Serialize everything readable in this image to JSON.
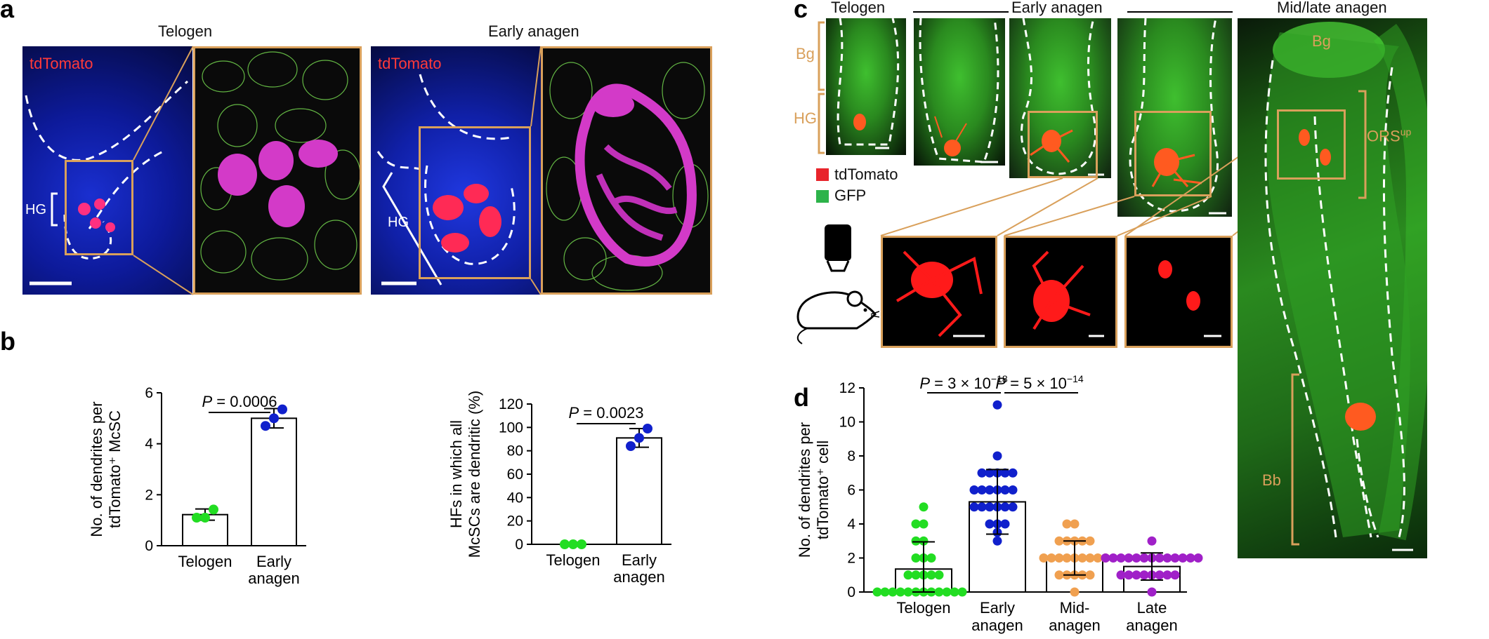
{
  "panel_labels": {
    "a": "a",
    "b": "b",
    "c": "c",
    "d": "d"
  },
  "colors": {
    "orange": "#d9a05b",
    "tdtomato": "#e8242b",
    "gfp": "#2db34a",
    "dapi": "#1830d8",
    "telogen_points": "#22dd22",
    "early_points": "#1020cc",
    "mid_points": "#f0a050",
    "late_points": "#a020c8"
  },
  "panel_a": {
    "telogen_title": "Telogen",
    "early_title": "Early anagen",
    "tdtomato_label": "tdTomato",
    "hg_label": "HG"
  },
  "panel_c": {
    "telogen_title": "Telogen",
    "early_title": "Early anagen",
    "mid_late_title": "Mid/late anagen",
    "bg_label": "Bg",
    "hg_label": "HG",
    "legend_tdtomato": "tdTomato",
    "legend_gfp": "GFP",
    "ors_label": "ORS",
    "ors_sup": "up",
    "bg_label_right": "Bg",
    "bb_label": "Bb"
  },
  "chart_data": [
    {
      "type": "bar",
      "categories": [
        "Telogen",
        "Early\nanagen"
      ],
      "values": [
        1.22,
        5.0
      ],
      "errors": [
        0.22,
        0.38
      ],
      "points": [
        [
          1.1,
          1.1,
          1.42
        ],
        [
          4.7,
          5.0,
          5.35
        ]
      ],
      "point_colors": [
        "#22dd22",
        "#1020cc"
      ],
      "ylabel": "No. of dendrites per\ntdTomato⁺ McSC",
      "ylim": [
        0,
        6
      ],
      "yticks": [
        0,
        2,
        4,
        6
      ],
      "pvalue_label": "P = 0.0006"
    },
    {
      "type": "bar",
      "categories": [
        "Telogen",
        "Early\nanagen"
      ],
      "values": [
        0,
        91
      ],
      "errors": [
        0,
        8
      ],
      "points": [
        [
          0,
          0,
          0
        ],
        [
          84,
          91,
          99
        ]
      ],
      "point_colors": [
        "#22dd22",
        "#1020cc"
      ],
      "ylabel": "HFs in which all\nMcSCs are dendritic (%)",
      "ylim": [
        0,
        120
      ],
      "yticks": [
        0,
        20,
        40,
        60,
        80,
        100,
        120
      ],
      "pvalue_label": "P = 0.0023"
    },
    {
      "type": "bar",
      "categories": [
        "Telogen",
        "Early\nanagen",
        "Mid-\nanagen",
        "Late\nanagen"
      ],
      "values": [
        1.35,
        5.3,
        2.0,
        1.5
      ],
      "errors": [
        1.6,
        1.9,
        1.0,
        0.8
      ],
      "point_colors": [
        "#22dd22",
        "#1020cc",
        "#f0a050",
        "#a020c8"
      ],
      "ylabel": "No. of dendrites per\ntdTomato⁺ cell",
      "ylim": [
        0,
        12
      ],
      "yticks": [
        0,
        2,
        4,
        6,
        8,
        10,
        12
      ],
      "pvalue_left": "P = 3 × 10",
      "pvalue_left_exp": "−18",
      "pvalue_right": "P = 5 × 10",
      "pvalue_right_exp": "−14"
    }
  ]
}
